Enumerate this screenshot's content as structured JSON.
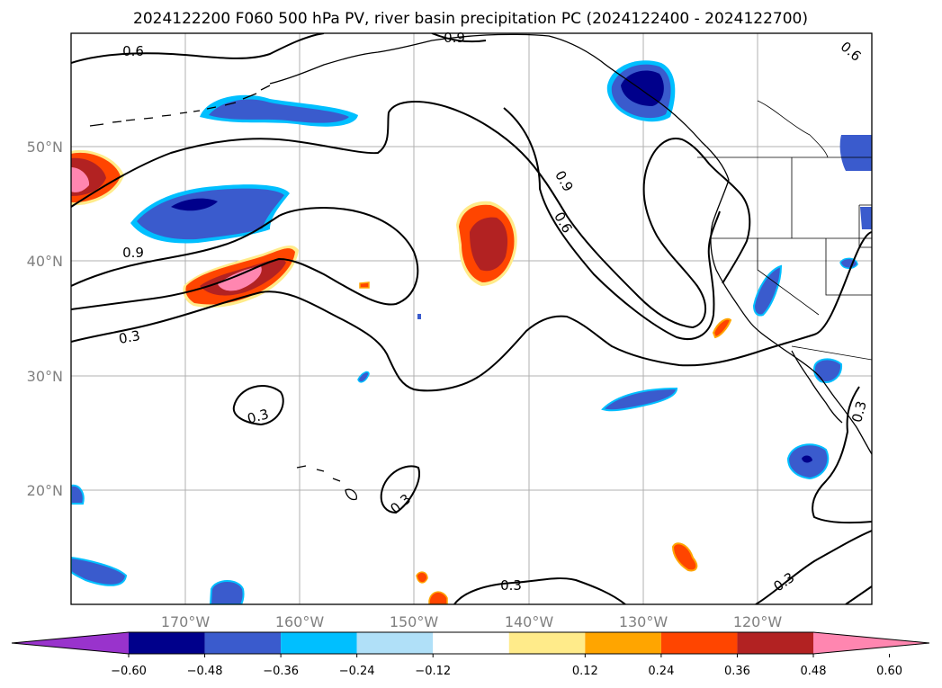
{
  "title": "2024122200 F060 500 hPa PV, river basin precipitation PC (2024122400 - 2024122700)",
  "map": {
    "lat_labels": [
      "50°N",
      "40°N",
      "30°N",
      "20°N"
    ],
    "lon_labels": [
      "170°W",
      "160°W",
      "150°W",
      "140°W",
      "130°W",
      "120°W"
    ],
    "contour_labels": [
      "0.6",
      "0.9",
      "0.6",
      "0.9",
      "0.6",
      "0.9",
      "0.3",
      "0.3",
      "0.3",
      "0.3",
      "0.3",
      "0.3"
    ]
  },
  "colorbar": {
    "ticks": [
      "−0.60",
      "−0.48",
      "−0.36",
      "−0.24",
      "−0.12",
      "0.12",
      "0.24",
      "0.36",
      "0.48",
      "0.60"
    ],
    "colors": [
      "#9933cc",
      "#00008b",
      "#3a5bcd",
      "#00bfff",
      "#b0e0f8",
      "#ffffff",
      "#ffeb8a",
      "#ffa500",
      "#ff4500",
      "#b22222",
      "#ff86b0"
    ]
  }
}
